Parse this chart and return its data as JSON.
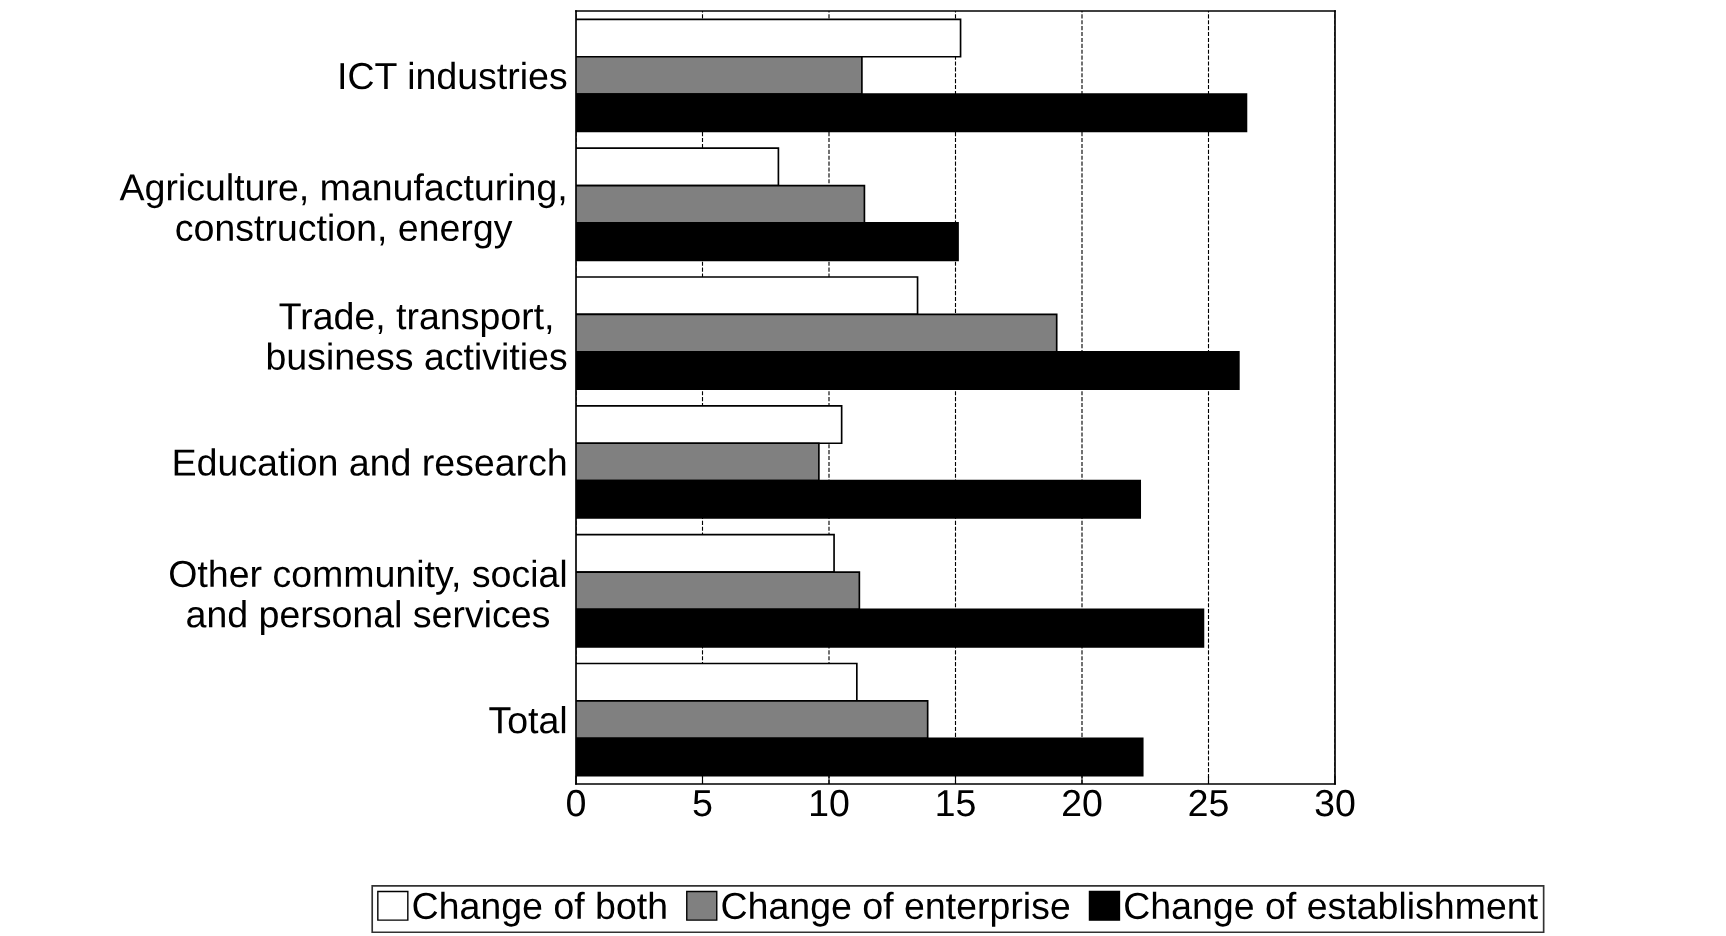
{
  "chart_data": {
    "type": "bar",
    "orientation": "horizontal",
    "categories": [
      "ICT industries",
      "Agriculture, manufacturing,\nconstruction, energy",
      "Trade, transport,\nbusiness activities",
      "Education and research",
      "Other community, social\nand personal services",
      "Total"
    ],
    "series": [
      {
        "name": "Change of both",
        "color": "#ffffff",
        "values": [
          15.2,
          8.0,
          13.5,
          10.5,
          10.2,
          11.1
        ]
      },
      {
        "name": "Change of enterprise",
        "color": "#808080",
        "values": [
          11.3,
          11.4,
          19.0,
          9.6,
          11.2,
          13.9
        ]
      },
      {
        "name": "Change of establishment",
        "color": "#000000",
        "values": [
          26.5,
          15.1,
          26.2,
          22.3,
          24.8,
          22.4
        ]
      }
    ],
    "xlim": [
      0,
      30
    ],
    "xticks": [
      0,
      5,
      10,
      15,
      20,
      25,
      30
    ],
    "grid": "x",
    "legend": "bottom"
  }
}
